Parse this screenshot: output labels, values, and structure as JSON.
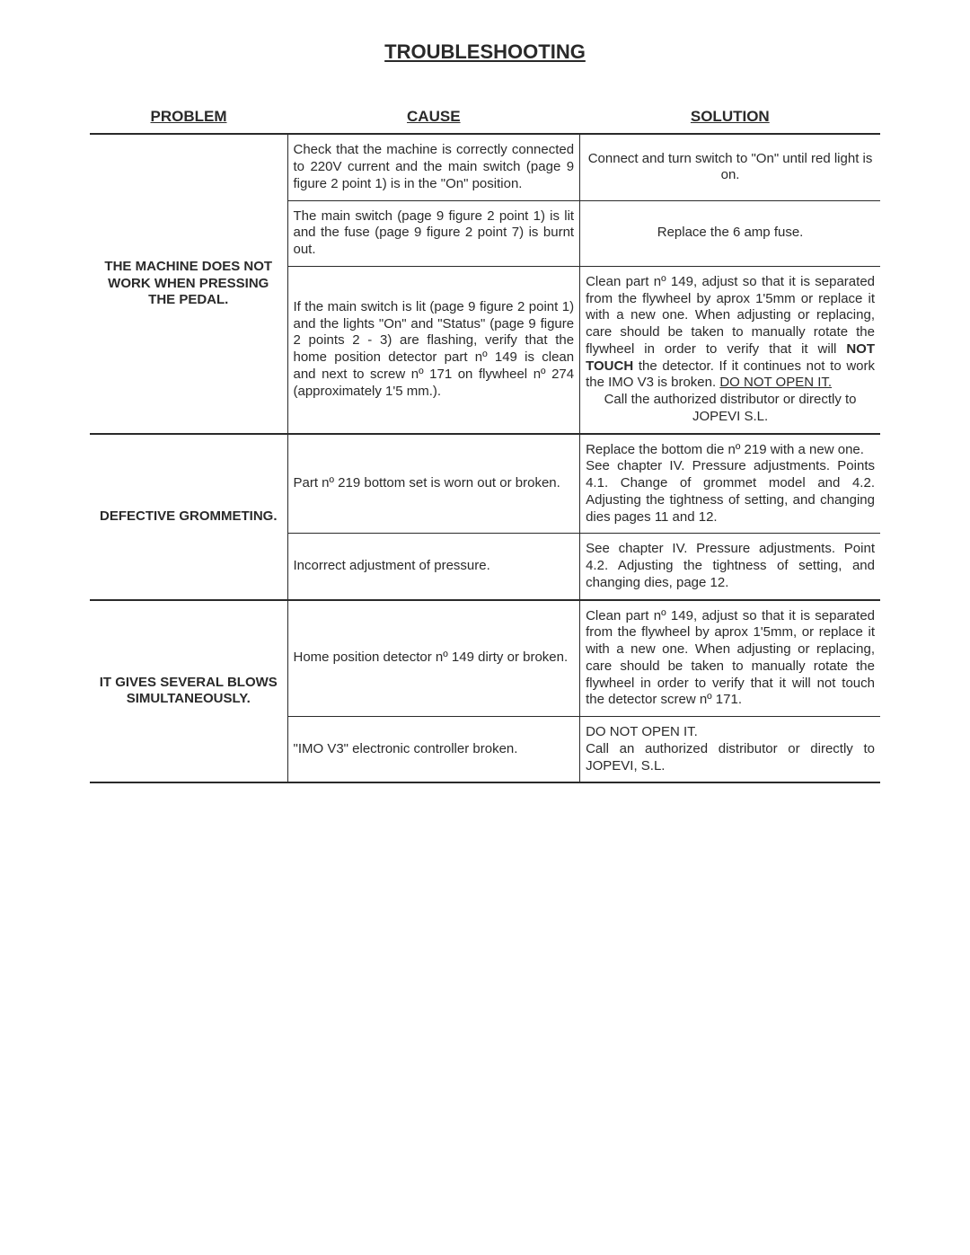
{
  "title": "TROUBLESHOOTING",
  "headers": {
    "problem": "PROBLEM",
    "cause": "CAUSE",
    "solution": "SOLUTION"
  },
  "rows": {
    "p1": {
      "problem": "THE MACHINE DOES NOT WORK WHEN PRESSING THE PEDAL.",
      "r1": {
        "cause": "Check that the machine is correctly connected to 220V current and the main switch (page 9 figure 2 point 1) is in the \"On\" position.",
        "solution": "Connect and turn switch to \"On\" until red light is on."
      },
      "r2": {
        "cause": "The main switch (page 9 figure 2 point 1) is lit and the fuse (page 9 figure 2 point 7) is burnt out.",
        "solution": "Replace the 6 amp fuse."
      },
      "r3": {
        "cause": "If the main switch is lit (page 9 figure 2 point 1) and the lights \"On\" and \"Status\" (page 9 figure 2 points 2 - 3) are flashing, verify that the home position detector part nº 149 is clean and next to screw nº 171 on flywheel nº 274 (approximately 1'5 mm.).",
        "solution_pre": "Clean part nº 149, adjust so that it is separated from the flywheel by aprox 1'5mm or replace it with a new one. When adjusting or replacing, care should be taken to manually rotate the flywheel in order to verify that it will ",
        "bold": "NOT TOUCH",
        "post_bold": " the detector. If it continues not to work the IMO V3 is broken. ",
        "underline": "DO NOT OPEN IT.",
        "tail": "Call the authorized distributor or directly to JOPEVI S.L."
      }
    },
    "p2": {
      "problem": "DEFECTIVE GROMMETING.",
      "r1": {
        "cause": "Part nº 219 bottom set is worn out or broken.",
        "solution": "Replace the bottom die nº 219 with a new one.\nSee chapter IV. Pressure adjustments. Points 4.1. Change of grommet model and 4.2. Adjusting the tightness of setting, and changing dies pages 11 and 12."
      },
      "r2": {
        "cause": "Incorrect adjustment of pressure.",
        "solution": "See chapter IV. Pressure adjustments. Point 4.2. Adjusting the tightness of setting, and changing dies, page 12."
      }
    },
    "p3": {
      "problem": "IT GIVES SEVERAL BLOWS SIMULTANEOUSLY.",
      "r1": {
        "cause": "Home position detector nº 149 dirty or broken.",
        "solution": "Clean part nº 149, adjust so that it is separated from the flywheel by aprox 1'5mm, or replace it with a new one. When adjusting or replacing, care should be taken to manually rotate the flywheel in order to verify that it will not touch the detector screw nº 171."
      },
      "r2": {
        "cause": "\"IMO V3\" electronic controller broken.",
        "solution": "DO NOT OPEN IT.\nCall an authorized distributor or directly to JOPEVI, S.L."
      }
    }
  }
}
